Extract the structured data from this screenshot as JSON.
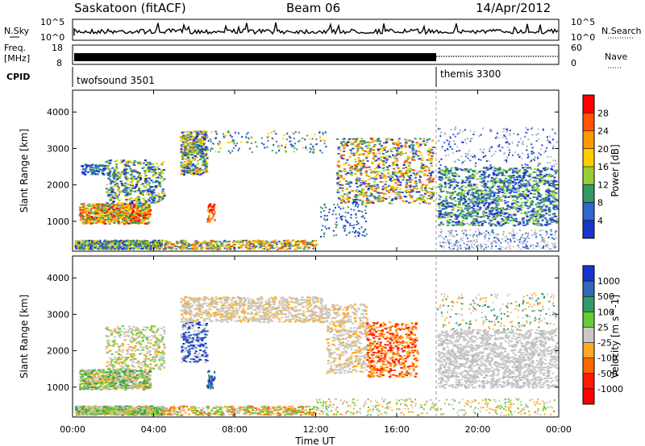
{
  "header": {
    "station": "Saskatoon (fitACF)",
    "beam": "Beam 06",
    "date": "14/Apr/2012"
  },
  "top_strips": {
    "left_labels": {
      "nsky": "N.Sky",
      "freq_line1": "Freq.",
      "freq_line2": "[MHz]",
      "cpid": "CPID"
    },
    "right_labels": {
      "nsearch": "N.Search",
      "nave": "Nave"
    },
    "noise_axis": {
      "left_ticks": [
        "10^5",
        "10^0"
      ],
      "right_ticks": [
        "10^5",
        "10^0"
      ]
    },
    "freq_axis": {
      "left_ticks": [
        "18",
        "8"
      ],
      "right_ticks": [
        "60",
        "0"
      ]
    },
    "cpid_segments": [
      {
        "label": "twofsound 3501",
        "start_hour": 0,
        "end_hour": 18
      },
      {
        "label": "themis 3300",
        "start_hour": 18,
        "end_hour": 24
      }
    ]
  },
  "power_colorbar": {
    "title": "Power [dB]",
    "ticks": [
      "28",
      "24",
      "20",
      "16",
      "12",
      "8",
      "4"
    ],
    "colors": [
      "#ff0000",
      "#ff5500",
      "#ff9900",
      "#ffcc00",
      "#99cc33",
      "#339966",
      "#3366cc",
      "#1a33cc"
    ]
  },
  "velocity_colorbar": {
    "title": "Velocity [m s^-1]",
    "ticks": [
      "1000",
      "500",
      "100",
      "25",
      "-25",
      "-100",
      "-500",
      "-1000"
    ],
    "colors": [
      "#1a33cc",
      "#3366bb",
      "#339966",
      "#66cc33",
      "#c8c8c8",
      "#ffaa22",
      "#ff6600",
      "#ff1a00",
      "#ff0000"
    ]
  },
  "chart_data": [
    {
      "type": "heatmap",
      "panel": "power",
      "ylabel": "Slant Range [km]",
      "xlim": [
        0,
        24
      ],
      "ylim": [
        180,
        4600
      ],
      "yticks": [
        1000,
        2000,
        3000,
        4000
      ],
      "x_tick_hours": [
        0,
        4,
        8,
        12,
        16,
        20,
        24
      ],
      "regions": [
        {
          "hours": [
            0.2,
            4.4
          ],
          "range_km": [
            900,
            2700
          ],
          "value": "mixed 4-28"
        },
        {
          "hours": [
            5.3,
            6.5
          ],
          "range_km": [
            2200,
            3500
          ],
          "value": "mixed 8-24"
        },
        {
          "hours": [
            6.8,
            7.3
          ],
          "range_km": [
            1000,
            1500
          ],
          "value": "24-28"
        },
        {
          "hours": [
            13.0,
            17.8
          ],
          "range_km": [
            1500,
            3400
          ],
          "value": "mixed 8-28"
        },
        {
          "hours": [
            18.0,
            24.0
          ],
          "range_km": [
            800,
            2600
          ],
          "value": "4-12"
        }
      ]
    },
    {
      "type": "heatmap",
      "panel": "velocity",
      "ylabel": "Slant Range [km]",
      "xlabel": "Time UT",
      "xlim": [
        0,
        24
      ],
      "ylim": [
        180,
        4600
      ],
      "yticks": [
        1000,
        2000,
        3000,
        4000
      ],
      "x_tick_labels": [
        "00:00",
        "04:00",
        "08:00",
        "12:00",
        "16:00",
        "20:00",
        "00:00"
      ],
      "x_tick_hours": [
        0,
        4,
        8,
        12,
        16,
        20,
        24
      ],
      "regions": [
        {
          "hours": [
            0.2,
            4.4
          ],
          "range_km": [
            900,
            2700
          ],
          "value": "-25 to 100"
        },
        {
          "hours": [
            5.3,
            12.5
          ],
          "range_km": [
            2800,
            3500
          ],
          "value": "-25 to 25"
        },
        {
          "hours": [
            14.5,
            17.0
          ],
          "range_km": [
            1300,
            2800
          ],
          "value": "-100 to -500"
        },
        {
          "hours": [
            18.0,
            24.0
          ],
          "range_km": [
            1000,
            2600
          ],
          "value": "-25 to 25"
        }
      ]
    }
  ]
}
